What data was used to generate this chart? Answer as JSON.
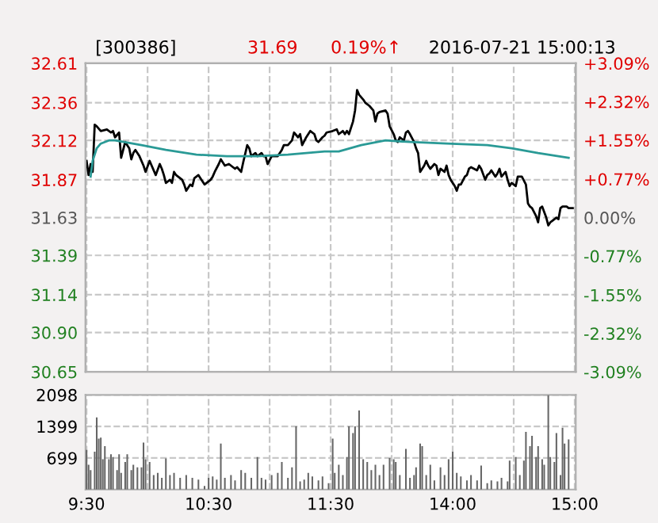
{
  "chart_data": [
    {
      "type": "line",
      "title": "[300386]",
      "annotations": [
        "31.69",
        "0.19%↑",
        "2016-07-21 15:00:13"
      ],
      "categories": [
        null,
        null,
        null,
        null,
        null,
        null,
        null,
        null,
        null,
        null,
        null,
        null,
        null,
        null,
        null,
        null,
        null,
        null,
        null,
        null,
        null,
        null,
        null,
        null,
        null,
        null,
        null,
        null,
        null,
        null,
        null,
        null,
        null,
        null,
        null,
        null,
        null,
        null,
        null,
        null,
        null,
        null,
        null,
        null,
        null,
        null,
        null,
        null,
        null,
        null,
        null,
        null,
        null,
        null,
        null,
        null,
        null,
        null,
        null,
        null,
        null,
        null,
        null,
        null,
        null,
        null,
        null,
        null,
        null,
        null,
        null,
        null,
        null,
        null,
        null,
        null,
        null,
        null,
        null,
        null,
        null,
        null,
        null,
        null,
        null,
        null,
        null,
        null,
        null,
        null,
        null,
        null,
        null,
        null,
        null,
        null,
        null,
        null,
        null,
        null,
        null,
        null,
        null,
        null,
        null,
        null,
        null,
        null,
        null,
        null,
        null,
        null,
        null,
        null,
        null,
        null,
        null,
        null,
        null,
        null,
        null,
        null,
        null,
        null,
        null,
        null,
        null,
        null,
        null,
        null,
        null,
        null,
        null,
        null,
        null,
        null,
        null,
        null,
        null,
        null,
        null,
        null,
        null,
        null,
        null,
        null,
        null,
        null,
        null,
        null,
        null,
        null,
        null,
        null,
        null,
        null,
        null,
        null,
        null,
        null,
        null,
        null,
        null,
        null,
        null,
        null,
        null,
        null,
        null,
        null,
        null,
        null,
        null,
        null,
        null,
        null,
        null,
        null,
        null,
        null,
        null,
        null,
        null,
        null,
        null,
        null,
        null,
        null,
        null,
        null,
        null,
        null,
        null,
        null,
        null,
        null,
        null,
        null,
        null,
        null,
        null,
        null,
        null,
        null,
        null,
        null,
        null,
        null,
        null,
        null,
        null,
        null,
        null,
        null,
        null,
        null,
        null,
        null,
        null,
        null,
        null,
        null,
        null,
        null,
        null,
        null,
        null,
        null,
        null,
        null,
        null,
        null,
        null,
        null,
        null,
        null,
        null,
        null,
        null,
        null,
        null
      ],
      "ylim": [
        30.65,
        32.61
      ],
      "yticks": [
        30.65,
        {
          "value": 30.9,
          "label": "30.90"
        },
        31.14,
        31.39,
        31.63,
        31.87,
        32.12,
        32.36,
        32.61
      ],
      "y2lim": [
        -3.09,
        3.09
      ],
      "y2ticks": [
        {
          "value": -3.09,
          "label": "-3.09%"
        },
        {
          "value": -2.32,
          "label": "-2.32%"
        },
        {
          "value": -1.55,
          "label": "-1.55%"
        },
        {
          "value": -0.77,
          "label": "-0.77%"
        },
        {
          "value": 0,
          "label": "0.00%"
        },
        {
          "value": 0.77,
          "label": "+0.77%"
        },
        {
          "value": 1.55,
          "label": "+1.55%"
        },
        {
          "value": 2.32,
          "label": "+2.32%"
        },
        {
          "value": 3.09,
          "label": "+3.09%"
        }
      ],
      "grid": true,
      "line_style": "solid",
      "marker": "none",
      "series": [
        {
          "color": "#000000",
          "values": [
            31.99,
            31.9,
            31.97,
            31.92,
            32.22,
            32.21,
            null,
            32.18,
            null,
            null,
            32.19,
            null,
            32.17,
            32.18,
            32.14,
            null,
            32.17,
            32.01,
            32.06,
            32.11,
            null,
            32.07,
            32.0,
            32.04,
            32.06,
            null,
            32.02,
            null,
            31.96,
            31.92,
            null,
            31.99,
            31.96,
            null,
            31.9,
            null,
            31.97,
            31.94,
            31.9,
            31.85,
            null,
            31.87,
            31.85,
            31.92,
            31.9,
            null,
            null,
            31.87,
            31.84,
            31.8,
            null,
            31.84,
            31.83,
            31.88,
            null,
            31.9,
            31.88,
            null,
            31.84,
            31.85,
            null,
            31.87,
            31.89,
            31.92,
            null,
            31.97,
            32.0,
            null,
            31.96,
            null,
            31.97,
            null,
            31.95,
            31.94,
            31.95,
            null,
            31.92,
            31.98,
            null,
            32.09,
            32.07,
            32.02,
            null,
            32.04,
            32.02,
            null,
            32.04,
            32.02,
            32.02,
            31.97,
            null,
            32.02,
            null,
            null,
            32.02,
            null,
            32.06,
            32.09,
            null,
            32.09,
            null,
            32.12,
            32.17,
            null,
            32.14,
            32.16,
            32.09,
            null,
            32.14,
            null,
            32.18,
            null,
            32.16,
            32.12,
            32.11,
            null,
            32.14,
            32.15,
            32.17,
            null,
            null,
            32.18,
            null,
            32.19,
            32.16,
            null,
            32.18,
            32.16,
            32.18,
            32.16,
            null,
            32.24,
            32.31,
            32.44,
            32.41,
            null,
            32.38,
            32.36,
            null,
            32.34,
            null,
            32.31,
            32.24,
            32.29,
            32.3,
            null,
            null,
            32.31,
            32.29,
            32.21,
            null,
            32.16,
            32.12,
            32.11,
            32.14,
            null,
            32.12,
            32.17,
            32.18,
            32.16,
            null,
            32.11,
            32.07,
            32.04,
            31.92,
            null,
            31.96,
            31.99,
            31.96,
            31.94,
            null,
            31.97,
            31.96,
            31.9,
            31.94,
            null,
            31.92,
            31.96,
            31.9,
            31.87,
            null,
            31.83,
            31.8,
            31.84,
            31.84,
            null,
            31.89,
            31.9,
            31.94,
            31.95,
            null,
            null,
            31.93,
            31.96,
            31.94,
            null,
            31.87,
            31.9,
            31.91,
            31.93,
            null,
            31.89,
            31.91,
            31.94,
            31.89,
            null,
            31.92,
            31.87,
            31.83,
            31.85,
            null,
            31.83,
            31.89,
            31.89,
            31.89,
            null,
            31.84,
            31.72,
            31.7,
            31.69,
            null,
            31.64,
            31.6,
            31.69,
            31.7,
            null,
            31.63,
            31.58,
            31.6,
            31.61,
            null,
            31.63,
            31.62,
            31.69,
            31.7,
            null,
            31.7,
            31.69,
            null,
            31.69,
            null
          ]
        },
        {
          "color": "#2a9a96",
          "values": [
            null,
            null,
            31.89,
            31.99,
            null,
            32.07,
            null,
            32.1,
            null,
            null,
            null,
            32.12,
            null,
            null,
            32.12,
            null,
            null,
            null,
            null,
            null,
            null,
            null,
            null,
            null,
            null,
            null,
            null,
            32.09,
            null,
            null,
            null,
            null,
            null,
            null,
            null,
            null,
            null,
            null,
            null,
            32.06,
            null,
            null,
            null,
            null,
            null,
            null,
            null,
            null,
            null,
            null,
            null,
            null,
            null,
            null,
            32.03,
            null,
            null,
            null,
            null,
            null,
            null,
            null,
            null,
            null,
            null,
            null,
            null,
            null,
            null,
            32.02,
            null,
            null,
            null,
            null,
            null,
            null,
            null,
            null,
            null,
            null,
            null,
            null,
            null,
            null,
            32.02,
            null,
            null,
            null,
            null,
            null,
            null,
            null,
            null,
            null,
            null,
            null,
            null,
            null,
            null,
            32.03,
            null,
            null,
            null,
            null,
            null,
            null,
            null,
            null,
            null,
            null,
            null,
            null,
            null,
            null,
            null,
            null,
            null,
            32.05,
            null,
            null,
            null,
            null,
            null,
            null,
            32.05,
            null,
            null,
            null,
            null,
            null,
            null,
            null,
            null,
            null,
            null,
            32.09,
            null,
            null,
            null,
            null,
            null,
            null,
            null,
            null,
            null,
            null,
            null,
            32.12,
            null,
            null,
            null,
            null,
            null,
            null,
            null,
            null,
            null,
            null,
            null,
            32.11,
            null,
            null,
            null,
            null,
            null,
            null,
            null,
            null,
            null,
            null,
            null,
            null,
            null,
            null,
            null,
            null,
            null,
            32.1,
            null,
            null,
            null,
            null,
            null,
            null,
            null,
            null,
            null,
            null,
            null,
            null,
            null,
            null,
            null,
            null,
            null,
            null,
            null,
            32.09,
            null,
            null,
            null,
            null,
            null,
            null,
            null,
            null,
            null,
            null,
            null,
            32.07,
            null,
            null,
            null,
            null,
            null,
            null,
            null,
            null,
            null,
            null,
            null,
            null,
            32.04,
            null,
            null,
            null,
            null,
            null,
            null,
            null,
            null,
            null,
            null,
            null,
            null,
            null,
            null,
            32.01,
            null,
            null,
            null
          ]
        }
      ]
    },
    {
      "type": "bar",
      "categories": [
        "9:30",
        null,
        null,
        null,
        null,
        null,
        null,
        null,
        null,
        null,
        null,
        null,
        null,
        null,
        null,
        null,
        null,
        null,
        null,
        null,
        null,
        null,
        null,
        null,
        null,
        null,
        null,
        null,
        null,
        null,
        null,
        null,
        null,
        null,
        null,
        null,
        null,
        null,
        null,
        null,
        null,
        null,
        null,
        null,
        null,
        null,
        null,
        null,
        null,
        null,
        null,
        null,
        null,
        null,
        null,
        null,
        null,
        null,
        null,
        null,
        "10:30",
        null,
        null,
        null,
        null,
        null,
        null,
        null,
        null,
        null,
        null,
        null,
        null,
        null,
        null,
        null,
        null,
        null,
        null,
        null,
        null,
        null,
        null,
        null,
        null,
        null,
        null,
        null,
        null,
        null,
        null,
        null,
        null,
        null,
        null,
        null,
        null,
        null,
        null,
        null,
        null,
        null,
        null,
        null,
        null,
        null,
        null,
        null,
        null,
        null,
        null,
        null,
        null,
        null,
        null,
        null,
        null,
        null,
        null,
        null,
        "11:30",
        null,
        null,
        null,
        null,
        null,
        null,
        null,
        null,
        null,
        null,
        null,
        null,
        null,
        null,
        null,
        null,
        null,
        null,
        null,
        null,
        null,
        null,
        null,
        null,
        null,
        null,
        null,
        null,
        null,
        null,
        null,
        null,
        null,
        null,
        null,
        null,
        null,
        null,
        null,
        null,
        null,
        null,
        null,
        null,
        null,
        null,
        null,
        null,
        null,
        null,
        null,
        null,
        null,
        null,
        null,
        null,
        null,
        null,
        null,
        "14:00",
        null,
        null,
        null,
        null,
        null,
        null,
        null,
        null,
        null,
        null,
        null,
        null,
        null,
        null,
        null,
        null,
        null,
        null,
        null,
        null,
        null,
        null,
        null,
        null,
        null,
        null,
        null,
        null,
        null,
        null,
        null,
        null,
        null,
        null,
        null,
        null,
        null,
        null,
        null,
        null,
        null,
        null,
        null,
        null,
        null,
        null,
        null,
        null,
        null,
        null,
        null,
        null,
        null,
        null,
        null,
        null,
        null,
        null,
        null,
        "15:00"
      ],
      "ylim": [
        0,
        2098
      ],
      "yticks": [
        699,
        1399,
        2098
      ],
      "grid": true,
      "series": [
        {
          "color": "#666666",
          "values": [
            880,
            550,
            430,
            null,
            840,
            1600,
            1130,
            1150,
            670,
            960,
            null,
            670,
            780,
            720,
            null,
            430,
            780,
            370,
            null,
            610,
            780,
            null,
            430,
            550,
            null,
            490,
            null,
            490,
            1040,
            670,
            null,
            610,
            null,
            320,
            null,
            370,
            null,
            260,
            null,
            690,
            null,
            320,
            null,
            370,
            null,
            null,
            260,
            null,
            null,
            320,
            null,
            null,
            260,
            null,
            null,
            220,
            null,
            null,
            80,
            null,
            260,
            null,
            290,
            null,
            220,
            null,
            1020,
            null,
            260,
            null,
            null,
            320,
            null,
            200,
            null,
            null,
            430,
            null,
            370,
            null,
            null,
            260,
            null,
            null,
            720,
            null,
            260,
            null,
            220,
            null,
            null,
            320,
            null,
            null,
            370,
            null,
            610,
            null,
            null,
            260,
            null,
            490,
            null,
            1400,
            null,
            180,
            null,
            220,
            null,
            370,
            null,
            290,
            null,
            null,
            200,
            null,
            290,
            null,
            null,
            140,
            null,
            1130,
            370,
            null,
            550,
            null,
            320,
            null,
            720,
            1400,
            null,
            1250,
            1400,
            null,
            1750,
            null,
            670,
            null,
            610,
            null,
            430,
            null,
            550,
            null,
            320,
            null,
            550,
            null,
            null,
            700,
            null,
            670,
            610,
            null,
            320,
            null,
            null,
            900,
            null,
            260,
            null,
            320,
            490,
            null,
            1020,
            960,
            null,
            320,
            null,
            550,
            null,
            200,
            null,
            null,
            490,
            null,
            320,
            null,
            670,
            null,
            840,
            null,
            370,
            null,
            290,
            null,
            null,
            200,
            null,
            320,
            null,
            null,
            200,
            null,
            530,
            null,
            null,
            140,
            null,
            200,
            null,
            null,
            180,
            null,
            260,
            null,
            null,
            180,
            640,
            null,
            null,
            720,
            null,
            320,
            null,
            640,
            1280,
            null,
            960,
            1190,
            null,
            720,
            960,
            null,
            670,
            550,
            null,
            2090,
            720,
            null,
            610,
            1250,
            null,
            320,
            1370,
            1020,
            null,
            1110,
            null,
            null,
            null
          ]
        }
      ]
    }
  ]
}
